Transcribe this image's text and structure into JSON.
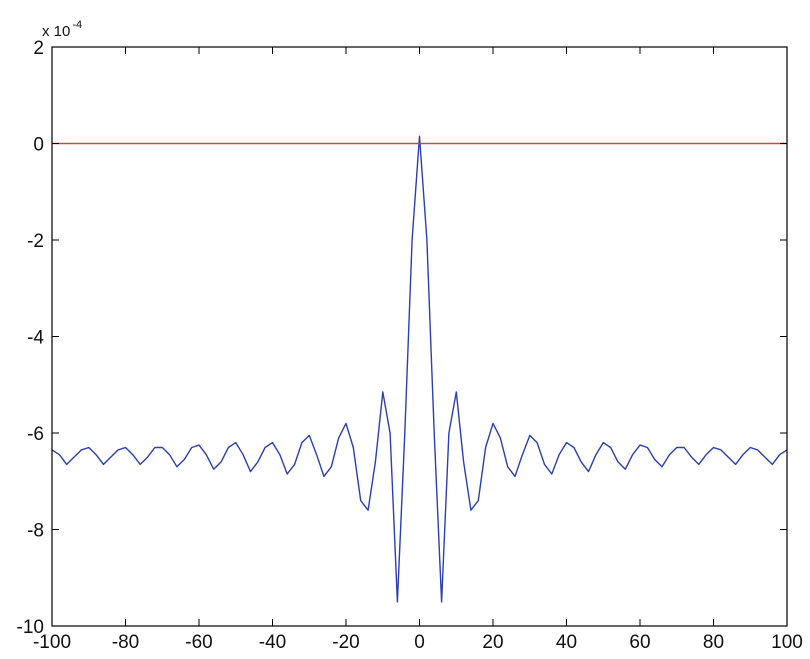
{
  "chart_data": {
    "type": "line",
    "title": "",
    "xlabel": "",
    "ylabel": "",
    "y_scale_label": "x 10",
    "y_scale_exponent": "-4",
    "y_scale_multiplier": 0.0001,
    "xlim": [
      -100,
      100
    ],
    "ylim": [
      -10,
      2
    ],
    "x_ticks": [
      -100,
      -80,
      -60,
      -40,
      -20,
      0,
      20,
      40,
      60,
      80,
      100
    ],
    "y_ticks": [
      2,
      0,
      -2,
      -4,
      -6,
      -8,
      -10
    ],
    "grid": false,
    "legend": "none",
    "series": [
      {
        "color": "#2a3fb0",
        "x": [
          -100,
          -98,
          -96,
          -94,
          -92,
          -90,
          -88,
          -86,
          -84,
          -82,
          -80,
          -78,
          -76,
          -74,
          -72,
          -70,
          -68,
          -66,
          -64,
          -62,
          -60,
          -58,
          -56,
          -54,
          -52,
          -50,
          -48,
          -46,
          -44,
          -42,
          -40,
          -38,
          -36,
          -34,
          -32,
          -30,
          -28,
          -26,
          -24,
          -22,
          -20,
          -18,
          -16,
          -14,
          -12,
          -10,
          -8,
          -6,
          -4,
          -2,
          0,
          2,
          4,
          6,
          8,
          10,
          12,
          14,
          16,
          18,
          20,
          22,
          24,
          26,
          28,
          30,
          32,
          34,
          36,
          38,
          40,
          42,
          44,
          46,
          48,
          50,
          52,
          54,
          56,
          58,
          60,
          62,
          64,
          66,
          68,
          70,
          72,
          74,
          76,
          78,
          80,
          82,
          84,
          86,
          88,
          90,
          92,
          94,
          96,
          98,
          100
        ],
        "y": [
          -6.35,
          -6.45,
          -6.65,
          -6.5,
          -6.35,
          -6.3,
          -6.45,
          -6.65,
          -6.5,
          -6.35,
          -6.3,
          -6.45,
          -6.65,
          -6.5,
          -6.3,
          -6.3,
          -6.45,
          -6.7,
          -6.55,
          -6.3,
          -6.25,
          -6.45,
          -6.75,
          -6.6,
          -6.3,
          -6.2,
          -6.45,
          -6.8,
          -6.6,
          -6.3,
          -6.2,
          -6.45,
          -6.85,
          -6.65,
          -6.2,
          -6.05,
          -6.45,
          -6.9,
          -6.7,
          -6.1,
          -5.8,
          -6.3,
          -7.4,
          -7.6,
          -6.6,
          -5.15,
          -6.0,
          -9.5,
          -6.0,
          -2.0,
          0.15,
          -2.0,
          -6.0,
          -9.5,
          -6.0,
          -5.15,
          -6.6,
          -7.6,
          -7.4,
          -6.3,
          -5.8,
          -6.1,
          -6.7,
          -6.9,
          -6.45,
          -6.05,
          -6.2,
          -6.65,
          -6.85,
          -6.45,
          -6.2,
          -6.3,
          -6.6,
          -6.8,
          -6.45,
          -6.2,
          -6.3,
          -6.6,
          -6.75,
          -6.45,
          -6.25,
          -6.3,
          -6.55,
          -6.7,
          -6.45,
          -6.3,
          -6.3,
          -6.5,
          -6.65,
          -6.45,
          -6.3,
          -6.35,
          -6.5,
          -6.65,
          -6.45,
          -6.3,
          -6.35,
          -6.5,
          -6.65,
          -6.45,
          -6.35
        ]
      },
      {
        "color": "#e04040",
        "x": [
          -100,
          100
        ],
        "y": [
          0,
          0
        ]
      }
    ]
  }
}
